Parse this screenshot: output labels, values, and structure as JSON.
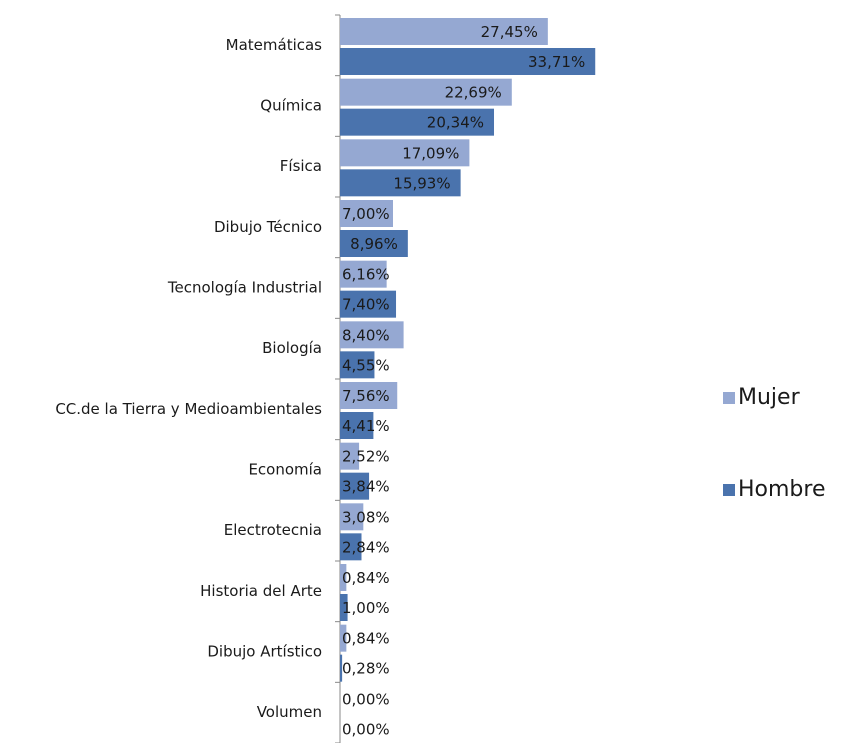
{
  "chart_data": {
    "type": "bar",
    "orientation": "horizontal",
    "categories": [
      "Matemáticas",
      "Química",
      "Física",
      "Dibujo Técnico",
      "Tecnología Industrial",
      "Biología",
      "CC.de la Tierra y Medioambientales",
      "Economía",
      "Electrotecnia",
      "Historia del Arte",
      "Dibujo Artístico",
      "Volumen"
    ],
    "series": [
      {
        "name": "Mujer",
        "color": "#95a8d2",
        "values": [
          27.45,
          22.69,
          17.09,
          7.0,
          6.16,
          8.4,
          7.56,
          2.52,
          3.08,
          0.84,
          0.84,
          0.0
        ],
        "value_labels": [
          "27,45%",
          "22,69%",
          "17,09%",
          "7,00%",
          "6,16%",
          "8,40%",
          "7,56%",
          "2,52%",
          "3,08%",
          "0,84%",
          "0,84%",
          "0,00%"
        ]
      },
      {
        "name": "Hombre",
        "color": "#4a73ad",
        "values": [
          33.71,
          20.34,
          15.93,
          8.96,
          7.4,
          4.55,
          4.41,
          3.84,
          2.84,
          1.0,
          0.28,
          0.0
        ],
        "value_labels": [
          "33,71%",
          "20,34%",
          "15,93%",
          "8,96%",
          "7,40%",
          "4,55%",
          "4,41%",
          "3,84%",
          "2,84%",
          "1,00%",
          "0,28%",
          "0,00%"
        ]
      }
    ],
    "xlim": [
      0,
      35
    ],
    "legend": "right"
  }
}
